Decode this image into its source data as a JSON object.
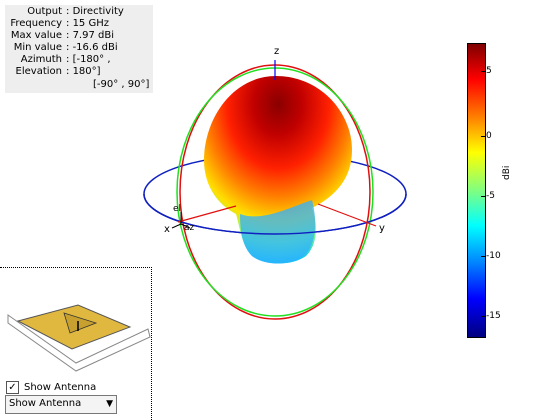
{
  "info": {
    "rows": [
      {
        "key": "Output",
        "value": "Directivity"
      },
      {
        "key": "Frequency",
        "value": "15 GHz"
      },
      {
        "key": "Max value",
        "value": "7.97 dBi"
      },
      {
        "key": "Min value",
        "value": "-16.6 dBi"
      },
      {
        "key": "Azimuth",
        "value": "[-180° ,"
      },
      {
        "key": "Elevation",
        "value": "180°]"
      }
    ],
    "extra": "[-90° , 90°]"
  },
  "axes": {
    "z": "z",
    "x": "x",
    "y": "y",
    "el": "el",
    "az": "az"
  },
  "colorbar": {
    "unit": "dBi",
    "ticks": [
      "5",
      "0",
      "-5",
      "-10",
      "-15"
    ],
    "colors": [
      "#7f0000",
      "#ff0000",
      "#ff8000",
      "#ffff00",
      "#80ff80",
      "#00ffff",
      "#0080ff",
      "#0000ff",
      "#00007f"
    ]
  },
  "controls": {
    "show_antenna_checked": true,
    "checkbox_label": "Show Antenna",
    "dropdown_value": "Show Antenna"
  }
}
